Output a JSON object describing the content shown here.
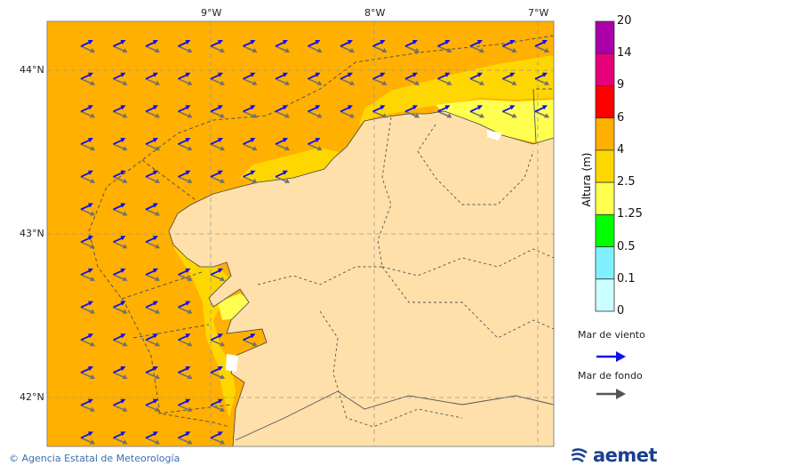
{
  "map": {
    "lon_labels": [
      "9°W",
      "8°W",
      "7°W"
    ],
    "lat_labels": [
      "44°N",
      "43°N",
      "42°N"
    ],
    "colors": {
      "sea_4_6": "#FFB000",
      "sea_2_5_4": "#FFD700",
      "sea_1_25_2_5": "#FFFF50",
      "land": "#FFE0AA",
      "wind_arrow": "#1010EE",
      "swell_arrow": "#707070"
    }
  },
  "colorbar": {
    "title": "Altura (m)",
    "levels": [
      "20",
      "14",
      "9",
      "6",
      "4",
      "2.5",
      "1.25",
      "0.5",
      "0.1",
      "0"
    ],
    "colors": [
      "#AA00AA",
      "#E6007A",
      "#FF0000",
      "#FFB000",
      "#FFD700",
      "#FFFF50",
      "#00FF00",
      "#80F0FF",
      "#CCFFFF"
    ]
  },
  "legend": {
    "wind_sea": "Mar de viento",
    "swell": "Mar de fondo"
  },
  "footer": {
    "credit": "© Agencia Estatal de Meteorología",
    "logo": "aemet"
  }
}
